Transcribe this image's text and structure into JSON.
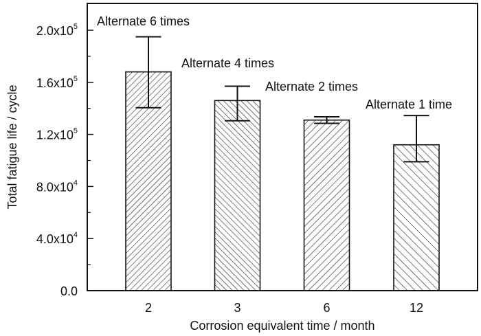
{
  "chart_data": {
    "type": "bar",
    "title": "",
    "xlabel": "Corrosion equivalent time / month",
    "ylabel": "Total fatigue life / cycle",
    "categories": [
      "2",
      "3",
      "6",
      "12"
    ],
    "values": [
      168000,
      146000,
      131000,
      112000
    ],
    "error_upper": [
      195000,
      157000,
      133500,
      134500
    ],
    "error_lower": [
      140500,
      130500,
      128500,
      99000
    ],
    "annotations": [
      "Alternate 6 times",
      "Alternate 4 times",
      "Alternate 2 times",
      "Alternate 1 time"
    ],
    "hatch": [
      "forward",
      "backward",
      "forward",
      "backward"
    ],
    "ylim": [
      0,
      220000
    ],
    "yticks": [
      {
        "value": 0,
        "label": "0.0",
        "exp": ""
      },
      {
        "value": 40000,
        "label": "4.0x10",
        "exp": "4"
      },
      {
        "value": 80000,
        "label": "8.0x10",
        "exp": "4"
      },
      {
        "value": 120000,
        "label": "1.2x10",
        "exp": "5"
      },
      {
        "value": 160000,
        "label": "1.6x10",
        "exp": "5"
      },
      {
        "value": 200000,
        "label": "2.0x10",
        "exp": "5"
      }
    ],
    "minor_yticks": [
      20000,
      60000,
      100000,
      140000,
      180000
    ],
    "grid": false,
    "legend": "none",
    "colors": {
      "bar_fill": "#ffffff",
      "hatch": "#222222",
      "stroke": "#111111"
    }
  }
}
